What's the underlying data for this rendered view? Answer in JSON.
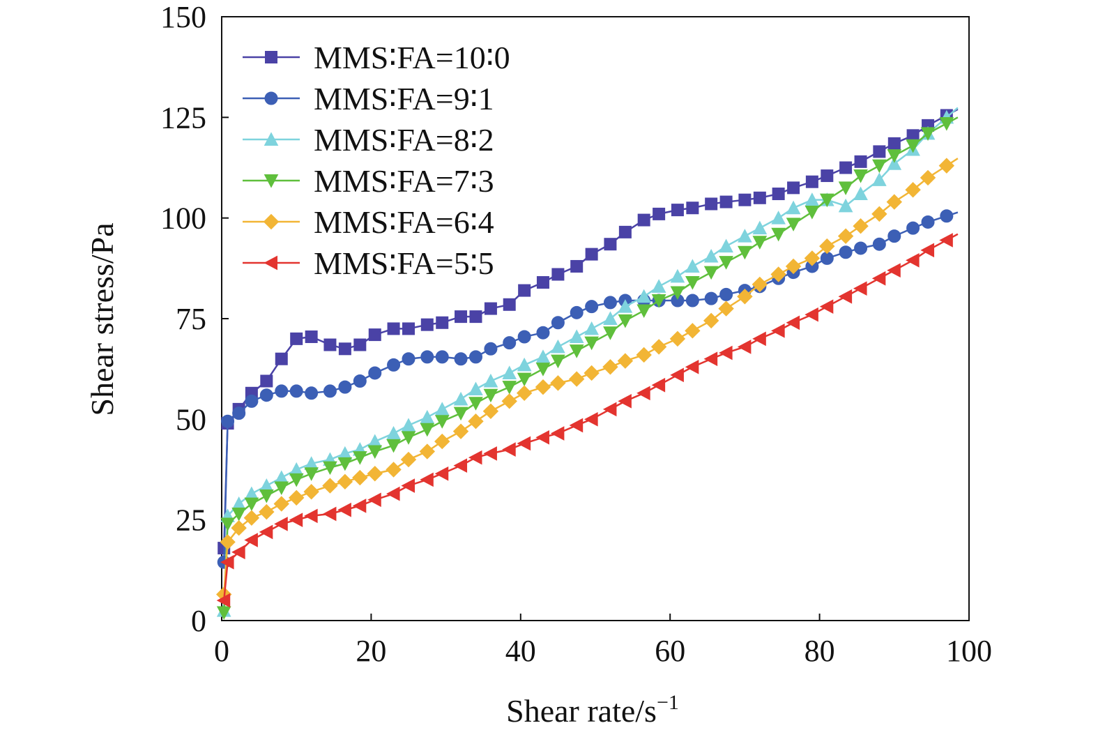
{
  "chart_data": {
    "type": "line",
    "title": "",
    "xlabel": "Shear rate/s",
    "xlabel_sup": "−1",
    "ylabel": "Shear stress/Pa",
    "xlim": [
      0,
      100
    ],
    "ylim": [
      0,
      150
    ],
    "xticks": [
      "0",
      "20",
      "40",
      "60",
      "80",
      "100"
    ],
    "yticks": [
      "0",
      "25",
      "50",
      "75",
      "100",
      "125",
      "150"
    ],
    "grid": false,
    "legend_position": "top-left",
    "series": [
      {
        "name": "MMS∶FA=10∶0",
        "color": "#4a42a6",
        "marker": "square",
        "x": [
          0.3,
          0.8,
          2.3,
          4.0,
          6.0,
          8.0,
          10.0,
          12.0,
          14.5,
          16.5,
          18.5,
          20.5,
          23,
          25,
          27.5,
          29.5,
          32,
          34,
          36,
          38.5,
          40.5,
          43,
          45,
          47.5,
          49.5,
          52,
          54,
          56.5,
          58.5,
          61,
          63,
          65.5,
          67.5,
          70,
          72,
          74.5,
          76.5,
          79,
          81,
          83.5,
          85.5,
          88,
          90,
          92.5,
          94.5,
          97
        ],
        "y": [
          18,
          49,
          52.5,
          56.5,
          59.5,
          65,
          70,
          70.5,
          68.5,
          67.5,
          68.5,
          71,
          72.5,
          72.5,
          73.5,
          74,
          75.5,
          75.5,
          77.5,
          78.5,
          82,
          84,
          86,
          88,
          91,
          93.5,
          96.5,
          99.5,
          101,
          102,
          102.5,
          103.5,
          104,
          104.5,
          105,
          106,
          107.5,
          109,
          110.5,
          112.5,
          114,
          116.5,
          118.5,
          120.5,
          123,
          125.5
        ]
      },
      {
        "name": "MMS∶FA=9∶1",
        "color": "#3c5fb5",
        "marker": "circle",
        "x": [
          0.3,
          0.8,
          2.3,
          4.0,
          6.0,
          8.0,
          10.0,
          12.0,
          14.5,
          16.5,
          18.5,
          20.5,
          23,
          25,
          27.5,
          29.5,
          32,
          34,
          36,
          38.5,
          40.5,
          43,
          45,
          47.5,
          49.5,
          52,
          54,
          56.5,
          58.5,
          61,
          63,
          65.5,
          67.5,
          70,
          72,
          74.5,
          76.5,
          79,
          81,
          83.5,
          85.5,
          88,
          90,
          92.5,
          94.5,
          97
        ],
        "y": [
          14.5,
          49.5,
          51.5,
          54.5,
          56,
          57,
          57,
          56.5,
          57,
          58,
          59.5,
          61.5,
          63.5,
          65,
          65.5,
          65.5,
          65,
          65.5,
          67.5,
          69,
          70.5,
          71.5,
          74,
          76.5,
          78,
          79,
          79.5,
          79.5,
          79.5,
          79.5,
          79.5,
          80,
          81,
          82,
          83,
          85,
          86.5,
          88,
          90,
          91.5,
          92.5,
          93.5,
          95.5,
          97.5,
          99,
          100.5
        ]
      },
      {
        "name": "MMS∶FA=8∶2",
        "color": "#7ed3dd",
        "marker": "triangle-up",
        "x": [
          0.3,
          0.8,
          2.3,
          4.0,
          6.0,
          8.0,
          10.0,
          12.0,
          14.5,
          16.5,
          18.5,
          20.5,
          23,
          25,
          27.5,
          29.5,
          32,
          34,
          36,
          38.5,
          40.5,
          43,
          45,
          47.5,
          49.5,
          52,
          54,
          56.5,
          58.5,
          61,
          63,
          65.5,
          67.5,
          70,
          72,
          74.5,
          76.5,
          79,
          81,
          83.5,
          85.5,
          88,
          90,
          92.5,
          94.5,
          97
        ],
        "y": [
          2.5,
          26,
          29,
          31.5,
          33.5,
          35.5,
          37.5,
          39,
          40,
          41.5,
          42.5,
          44.5,
          46.5,
          48.5,
          50.5,
          52.5,
          55,
          57.5,
          59.5,
          61.5,
          63.5,
          65.5,
          68,
          70.5,
          72.5,
          75,
          78,
          80.5,
          83,
          85.5,
          88,
          90.5,
          93,
          95.5,
          97.5,
          100,
          102.5,
          104.5,
          104.5,
          103,
          106,
          109.5,
          113.5,
          117,
          121,
          125
        ]
      },
      {
        "name": "MMS∶FA=7∶3",
        "color": "#5fbf3c",
        "marker": "triangle-down",
        "x": [
          0.3,
          0.8,
          2.3,
          4.0,
          6.0,
          8.0,
          10.0,
          12.0,
          14.5,
          16.5,
          18.5,
          20.5,
          23,
          25,
          27.5,
          29.5,
          32,
          34,
          36,
          38.5,
          40.5,
          43,
          45,
          47.5,
          49.5,
          52,
          54,
          56.5,
          58.5,
          61,
          63,
          65.5,
          67.5,
          70,
          72,
          74.5,
          76.5,
          79,
          81,
          83.5,
          85.5,
          88,
          90,
          92.5,
          94.5,
          97
        ],
        "y": [
          2,
          24,
          26.5,
          29,
          31,
          33,
          35,
          36.5,
          38,
          39,
          40.5,
          42,
          43.5,
          45.5,
          47.5,
          49.5,
          51.5,
          54,
          56,
          58,
          60,
          62.5,
          64.5,
          67,
          69,
          71.5,
          74.5,
          77,
          79.5,
          81.5,
          84,
          86.5,
          89,
          91.5,
          94,
          96,
          98.5,
          101.5,
          104.5,
          107.5,
          110.5,
          113,
          115.5,
          118,
          121,
          123.5
        ]
      },
      {
        "name": "MMS∶FA=6∶4",
        "color": "#f2b535",
        "marker": "diamond",
        "x": [
          0.3,
          0.8,
          2.3,
          4.0,
          6.0,
          8.0,
          10.0,
          12.0,
          14.5,
          16.5,
          18.5,
          20.5,
          23,
          25,
          27.5,
          29.5,
          32,
          34,
          36,
          38.5,
          40.5,
          43,
          45,
          47.5,
          49.5,
          52,
          54,
          56.5,
          58.5,
          61,
          63,
          65.5,
          67.5,
          70,
          72,
          74.5,
          76.5,
          79,
          81,
          83.5,
          85.5,
          88,
          90,
          92.5,
          94.5,
          97
        ],
        "y": [
          6.5,
          19.5,
          23,
          25.5,
          27,
          29,
          30.5,
          32,
          33.5,
          34.5,
          35.5,
          36.5,
          37.5,
          40,
          42,
          44.5,
          47,
          49.5,
          52,
          54.5,
          56.5,
          58,
          59,
          60,
          61.5,
          63,
          64.5,
          66,
          68,
          70,
          72,
          74.5,
          77.5,
          80.5,
          83.5,
          86,
          88,
          90,
          93,
          95.5,
          98,
          101,
          104,
          107,
          110,
          113
        ]
      },
      {
        "name": "MMS∶FA=5∶5",
        "color": "#e3342f",
        "marker": "triangle-left",
        "x": [
          0.3,
          0.8,
          2.3,
          4.0,
          6.0,
          8.0,
          10.0,
          12.0,
          14.5,
          16.5,
          18.5,
          20.5,
          23,
          25,
          27.5,
          29.5,
          32,
          34,
          36,
          38.5,
          40.5,
          43,
          45,
          47.5,
          49.5,
          52,
          54,
          56.5,
          58.5,
          61,
          63,
          65.5,
          67.5,
          70,
          72,
          74.5,
          76.5,
          79,
          81,
          83.5,
          85.5,
          88,
          90,
          92.5,
          94.5,
          97
        ],
        "y": [
          5,
          14.5,
          17,
          20,
          22,
          24,
          25,
          26,
          26.5,
          27.5,
          28.5,
          30,
          31.5,
          33.5,
          35,
          36.5,
          38.5,
          40.5,
          41.5,
          42.5,
          44,
          45.5,
          46.5,
          48.5,
          50,
          52.5,
          54.5,
          56.5,
          58.5,
          61,
          63,
          65,
          66.5,
          68,
          70,
          72,
          74,
          76,
          78,
          80.5,
          82.5,
          85,
          87,
          89.5,
          92,
          94.5
        ]
      }
    ]
  }
}
